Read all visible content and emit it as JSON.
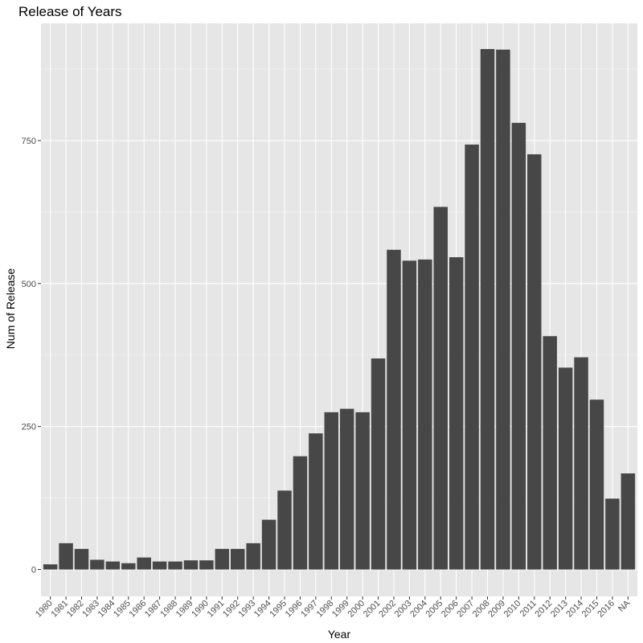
{
  "chart_data": {
    "type": "bar",
    "title": "Release of Years",
    "xlabel": "Year",
    "ylabel": "Num of Release",
    "categories": [
      "1980",
      "1981",
      "1982",
      "1983",
      "1984",
      "1985",
      "1986",
      "1987",
      "1988",
      "1989",
      "1990",
      "1991",
      "1992",
      "1993",
      "1994",
      "1995",
      "1996",
      "1997",
      "1998",
      "1999",
      "2000",
      "2001",
      "2002",
      "2003",
      "2004",
      "2005",
      "2006",
      "2007",
      "2008",
      "2009",
      "2010",
      "2011",
      "2012",
      "2013",
      "2014",
      "2015",
      "2016",
      "NA"
    ],
    "values": [
      9,
      46,
      36,
      17,
      14,
      11,
      21,
      14,
      14,
      16,
      16,
      36,
      36,
      46,
      87,
      138,
      198,
      238,
      275,
      281,
      275,
      369,
      559,
      540,
      542,
      634,
      546,
      743,
      910,
      909,
      781,
      726,
      408,
      353,
      371,
      297,
      124,
      168
    ],
    "ylim": [
      -47,
      955
    ],
    "yticks": [
      0,
      250,
      500,
      750
    ],
    "ytick_labels": [
      "0",
      "250",
      "500",
      "750"
    ],
    "grid": true,
    "colors": {
      "bar": "#474747",
      "panel_background": "#e6e6e6",
      "grid_major": "#ffffff",
      "grid_minor": "#f2f2f2"
    }
  }
}
